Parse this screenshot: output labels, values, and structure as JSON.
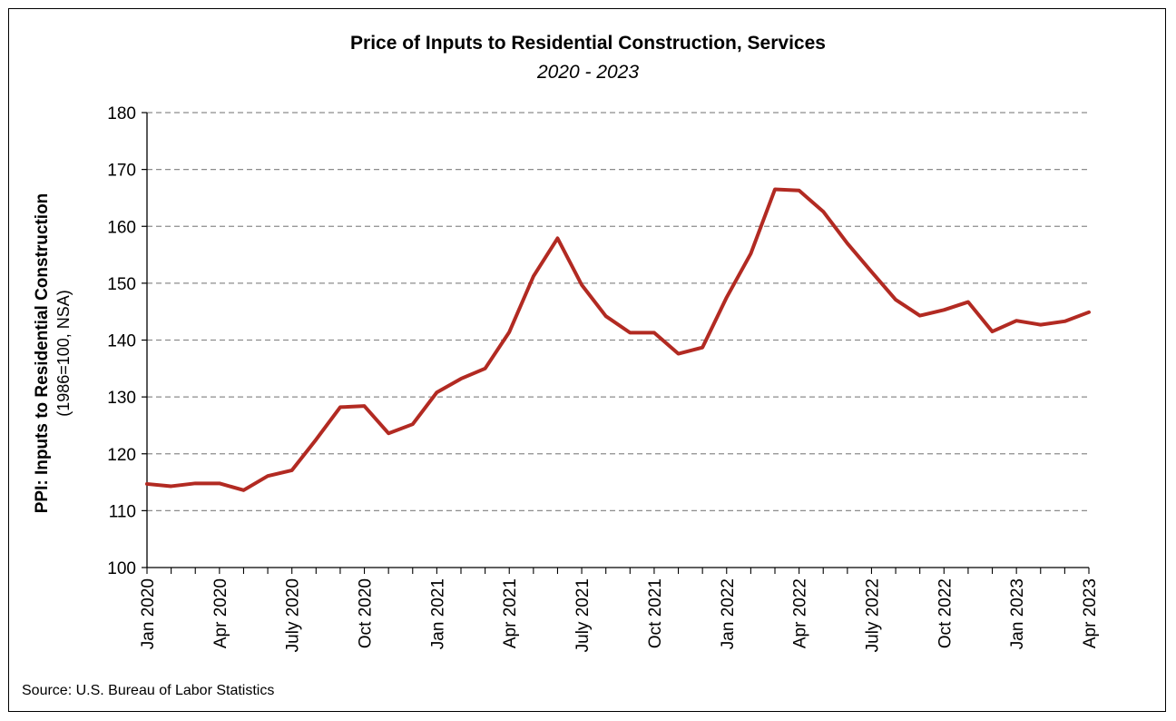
{
  "chart_data": {
    "type": "line",
    "title": "Price of Inputs to Residential Construction, Services",
    "subtitle": "2020 - 2023",
    "ylabel": "PPI: Inputs to Residential Construction",
    "ylabel_sub": "(1986=100, NSA)",
    "xlabel": "",
    "source": "Source: U.S. Bureau of Labor Statistics",
    "ylim": [
      100,
      180
    ],
    "yticks": [
      100,
      110,
      120,
      130,
      140,
      150,
      160,
      170,
      180
    ],
    "grid": true,
    "x": [
      "Jan 2020",
      "Feb 2020",
      "Mar 2020",
      "Apr 2020",
      "May 2020",
      "Jun 2020",
      "July 2020",
      "Aug 2020",
      "Sep 2020",
      "Oct 2020",
      "Nov 2020",
      "Dec 2020",
      "Jan 2021",
      "Feb 2021",
      "Mar 2021",
      "Apr 2021",
      "May 2021",
      "Jun 2021",
      "July 2021",
      "Aug 2021",
      "Sep 2021",
      "Oct 2021",
      "Nov 2021",
      "Dec 2021",
      "Jan 2022",
      "Feb 2022",
      "Mar 2022",
      "Apr 2022",
      "May 2022",
      "Jun 2022",
      "July 2022",
      "Aug 2022",
      "Sep 2022",
      "Oct 2022",
      "Nov 2022",
      "Dec 2022",
      "Jan 2023",
      "Feb 2023",
      "Mar 2023",
      "Apr 2023"
    ],
    "xtick_labels": [
      "Jan 2020",
      "Apr 2020",
      "July 2020",
      "Oct 2020",
      "Jan 2021",
      "Apr 2021",
      "July 2021",
      "Oct 2021",
      "Jan 2022",
      "Apr 2022",
      "July 2022",
      "Oct 2022",
      "Jan 2023",
      "Apr 2023"
    ],
    "series": [
      {
        "color": "#b22a22",
        "values": [
          114.7,
          114.3,
          114.8,
          114.8,
          113.6,
          116.1,
          117.1,
          122.5,
          128.2,
          128.4,
          123.6,
          125.2,
          130.8,
          133.2,
          135.0,
          141.4,
          151.2,
          157.9,
          149.7,
          144.2,
          141.3,
          141.3,
          137.6,
          138.7,
          147.5,
          155.2,
          166.5,
          166.3,
          162.6,
          157.0,
          152.0,
          147.1,
          144.3,
          145.3,
          146.7,
          141.5,
          143.4,
          142.7,
          143.3,
          144.9
        ]
      }
    ]
  }
}
